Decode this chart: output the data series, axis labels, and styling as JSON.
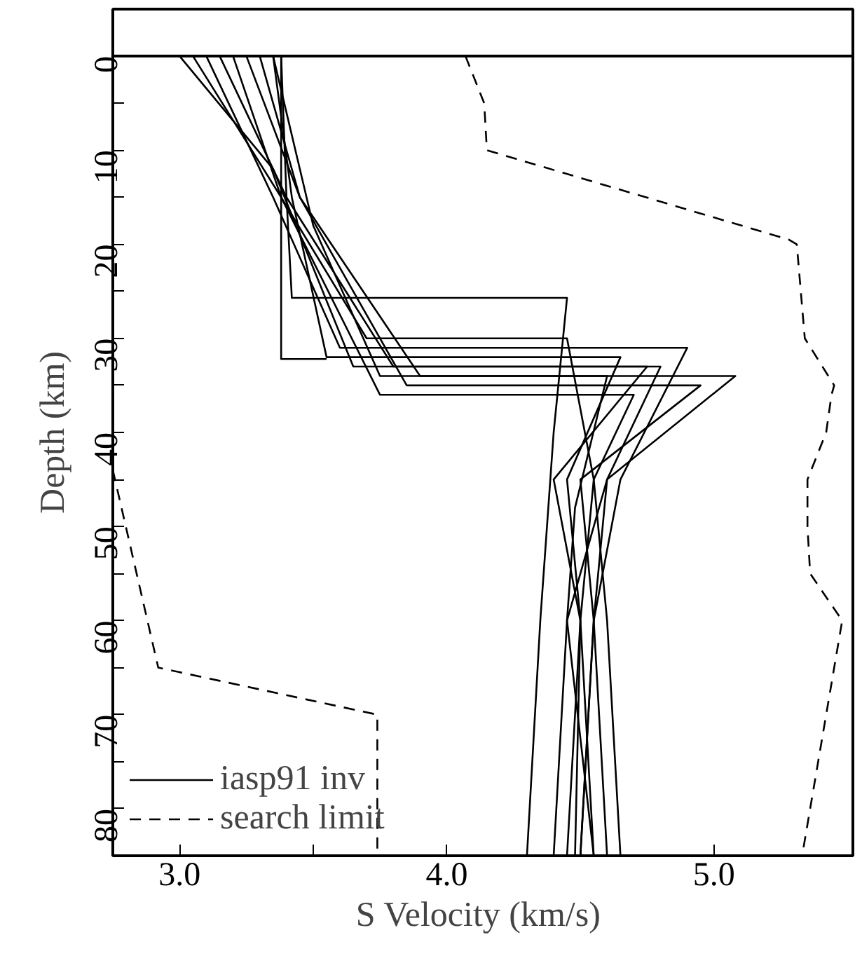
{
  "chart_data": {
    "type": "line",
    "xlabel": "S  Velocity (km/s)",
    "ylabel": "Depth (km)",
    "xlim": [
      2.75,
      5.52
    ],
    "ylim": [
      85,
      -5
    ],
    "xticks": [
      {
        "value": 3.0,
        "label": "3.0"
      },
      {
        "value": 3.5,
        "label": null
      },
      {
        "value": 4.0,
        "label": "4.0"
      },
      {
        "value": 4.5,
        "label": null
      },
      {
        "value": 5.0,
        "label": "5.0"
      }
    ],
    "yticks": [
      0,
      {
        "value": 5,
        "label": null
      },
      10,
      {
        "value": 15,
        "label": null
      },
      20,
      {
        "value": 25,
        "label": null
      },
      30,
      {
        "value": 35,
        "label": null
      },
      40,
      {
        "value": 45,
        "label": null
      },
      50,
      {
        "value": 55,
        "label": null
      },
      60,
      {
        "value": 65,
        "label": null
      },
      70,
      {
        "value": 75,
        "label": null
      },
      80
    ],
    "grid": false,
    "legend": "bottom left",
    "ref_lines": [
      {
        "axis": "y",
        "value": 0,
        "color": "#000000",
        "line_style": "solid"
      }
    ],
    "series": [
      {
        "name": "iasp91 inv",
        "color": "#000000",
        "line_style": "solid",
        "x": [
          3.05,
          3.38,
          3.7,
          4.45,
          4.55,
          4.5,
          4.45
        ],
        "values": [
          0,
          15,
          30,
          30,
          45,
          60,
          85
        ]
      },
      {
        "color": "#000000",
        "line_style": "solid",
        "x": [
          3.15,
          3.4,
          3.8,
          4.8,
          4.6,
          4.55,
          4.5
        ],
        "values": [
          0,
          15,
          33,
          33,
          45,
          60,
          85
        ]
      },
      {
        "color": "#000000",
        "line_style": "solid",
        "x": [
          3.25,
          3.45,
          3.9,
          5.08,
          4.6,
          4.45,
          4.4
        ],
        "values": [
          0,
          15,
          34,
          34,
          45,
          60,
          85
        ]
      },
      {
        "color": "#000000",
        "line_style": "solid",
        "x": [
          3.35,
          3.42,
          3.55,
          4.65,
          4.45,
          4.5,
          4.55
        ],
        "values": [
          0,
          15,
          32,
          32,
          45,
          60,
          85
        ]
      },
      {
        "color": "#000000",
        "line_style": "solid",
        "x": [
          3.38,
          3.4,
          3.42,
          4.45,
          4.4,
          4.35,
          4.3
        ],
        "values": [
          0,
          15,
          25.7,
          25.7,
          40,
          60,
          85
        ]
      },
      {
        "color": "#000000",
        "line_style": "solid",
        "x": [
          3.2,
          3.38,
          3.75,
          4.7,
          4.55,
          4.6,
          4.65
        ],
        "values": [
          0,
          15,
          36,
          36,
          45,
          60,
          85
        ]
      },
      {
        "color": "#000000",
        "line_style": "solid",
        "x": [
          3.1,
          3.35,
          3.6,
          4.9,
          4.65,
          4.55,
          4.6
        ],
        "values": [
          0,
          15,
          31,
          31,
          45,
          60,
          85
        ]
      },
      {
        "color": "#000000",
        "line_style": "solid",
        "x": [
          3.3,
          3.45,
          3.85,
          4.95,
          4.5,
          4.55,
          4.5
        ],
        "values": [
          0,
          15,
          35,
          35,
          45,
          60,
          85
        ]
      },
      {
        "color": "#000000",
        "line_style": "solid",
        "x": [
          3.0,
          3.35,
          3.65,
          4.75,
          4.4,
          4.5,
          4.48
        ],
        "values": [
          0,
          12,
          33,
          33,
          45,
          60,
          85
        ]
      },
      {
        "color": "#000000",
        "line_style": "solid",
        "x": [
          3.35,
          3.5,
          3.75,
          4.6,
          4.48,
          4.45,
          4.55
        ],
        "values": [
          0,
          18,
          34,
          34,
          48,
          60,
          85
        ]
      },
      {
        "color": "#000000",
        "line_style": "solid",
        "x": [
          3.38,
          3.38,
          3.55
        ],
        "values": [
          0,
          32.2,
          32.2
        ]
      },
      {
        "name": "search limit",
        "color": "#000000",
        "line_style": "dashed",
        "x": [
          4.07,
          4.14,
          4.15,
          5.28,
          5.31,
          5.34,
          5.45,
          5.44,
          5.42,
          5.35,
          5.35,
          5.36,
          5.48,
          5.33
        ],
        "values": [
          0,
          5,
          10,
          19.5,
          20,
          30,
          35,
          36,
          40,
          45,
          50,
          55,
          60,
          85
        ]
      },
      {
        "color": "#000000",
        "line_style": "dashed",
        "x": [
          2.75,
          2.92,
          3.74,
          3.74
        ],
        "values": [
          44,
          65,
          70,
          85
        ]
      }
    ]
  }
}
